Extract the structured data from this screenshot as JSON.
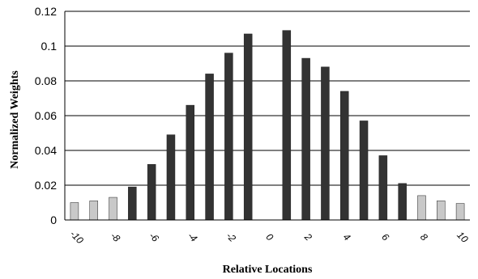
{
  "chart_data": {
    "type": "bar",
    "title": "",
    "xlabel": "Relative Locations",
    "ylabel": "Normalized Weights",
    "ylim": [
      0,
      0.12
    ],
    "yticks": [
      "0",
      "0.02",
      "0.04",
      "0.06",
      "0.08",
      "0.1",
      "0.12"
    ],
    "grid": "horizontal",
    "legend": "none",
    "x": [
      -10,
      -9,
      -8,
      -7,
      -6,
      -5,
      -4,
      -3,
      -2,
      -1,
      0,
      1,
      2,
      3,
      4,
      5,
      6,
      7,
      8,
      9,
      10
    ],
    "xticks": [
      "-10",
      "-8",
      "-6",
      "-4",
      "-2",
      "0",
      "2",
      "4",
      "6",
      "8",
      "10"
    ],
    "values": [
      0.01,
      0.011,
      0.013,
      0.019,
      0.032,
      0.049,
      0.066,
      0.084,
      0.096,
      0.107,
      0,
      0.109,
      0.093,
      0.088,
      0.074,
      0.057,
      0.037,
      0.021,
      0.014,
      0.011,
      0.0095
    ],
    "bar_groups": [
      "light",
      "light",
      "light",
      "dark",
      "dark",
      "dark",
      "dark",
      "dark",
      "dark",
      "dark",
      "none",
      "dark",
      "dark",
      "dark",
      "dark",
      "dark",
      "dark",
      "dark",
      "light",
      "light",
      "light"
    ],
    "colors": {
      "dark": "#333333",
      "light": "#c8c8c8",
      "grid": "#000000"
    }
  }
}
